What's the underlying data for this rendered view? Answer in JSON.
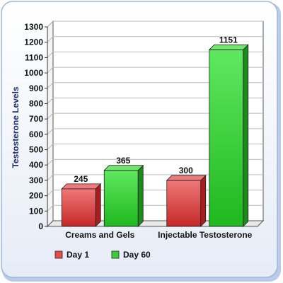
{
  "chart_data": {
    "type": "bar",
    "categories": [
      "Creams and Gels",
      "Injectable Testosterone"
    ],
    "series": [
      {
        "name": "Day 1",
        "values": [
          245,
          300
        ],
        "color": "#e84a4a",
        "side_color": "#a81e1e",
        "top_color": "#f07a7a"
      },
      {
        "name": "Day 60",
        "values": [
          365,
          1151
        ],
        "color": "#3ccf3c",
        "side_color": "#1c8a1c",
        "top_color": "#6ee86e"
      }
    ],
    "data_labels": [
      [
        "245",
        "300"
      ],
      [
        "365",
        "1151"
      ]
    ],
    "ylabel": "Testosterone Levels",
    "yticks": [
      "0",
      "100",
      "200",
      "300",
      "400",
      "500",
      "600",
      "700",
      "800",
      "900",
      "1000",
      "1100",
      "1200",
      "1300"
    ],
    "ylim": [
      0,
      1300
    ],
    "grid": true,
    "legend_position": "bottom-left",
    "style": "3d-bars",
    "frame_background": "#c8d7ef"
  }
}
